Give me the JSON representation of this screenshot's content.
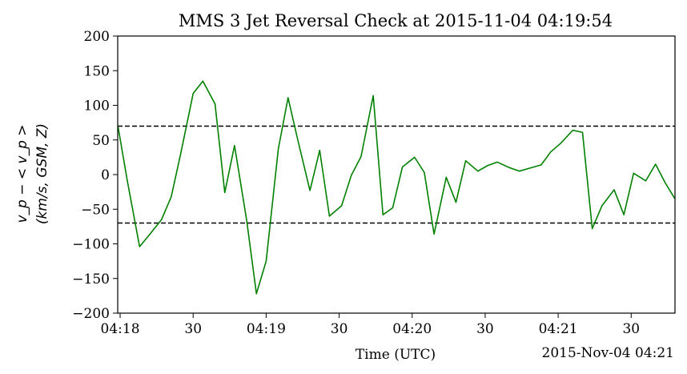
{
  "chart_data": {
    "type": "line",
    "title": "MMS 3 Jet Reversal Check at 2015-11-04 04:19:54",
    "xlabel": "Time (UTC)",
    "ylabel_line1": "v_p − < v_p >",
    "ylabel_line2": "(km/s, GSM, Z)",
    "x_offset_label": "2015-Nov-04 04:21",
    "x_units": "seconds after 04:18:00 UTC",
    "xlim": [
      -1,
      228
    ],
    "ylim": [
      -200,
      200
    ],
    "xticks": [
      {
        "value": 0,
        "label": "04:18"
      },
      {
        "value": 30,
        "label": "30"
      },
      {
        "value": 60,
        "label": "04:19"
      },
      {
        "value": 90,
        "label": "30"
      },
      {
        "value": 120,
        "label": "04:20"
      },
      {
        "value": 150,
        "label": "30"
      },
      {
        "value": 180,
        "label": "04:21"
      },
      {
        "value": 210,
        "label": "30"
      }
    ],
    "yticks": [
      {
        "value": 200,
        "label": "200"
      },
      {
        "value": 150,
        "label": "150"
      },
      {
        "value": 100,
        "label": "100"
      },
      {
        "value": 50,
        "label": "50"
      },
      {
        "value": 0,
        "label": "0"
      },
      {
        "value": -50,
        "label": "−50"
      },
      {
        "value": -100,
        "label": "−100"
      },
      {
        "value": -150,
        "label": "−150"
      },
      {
        "value": -200,
        "label": "−200"
      }
    ],
    "thresholds": [
      70,
      -70
    ],
    "series": [
      {
        "color": "#008000",
        "x": [
          -1,
          3,
          8,
          12,
          17,
          21,
          25,
          30,
          34,
          39,
          43,
          47,
          52,
          56,
          60,
          65,
          69,
          73,
          78,
          82,
          86,
          91,
          95,
          99,
          104,
          108,
          112,
          116,
          121,
          125,
          129,
          134,
          138,
          142,
          147,
          151,
          155,
          160,
          164,
          168,
          173,
          177,
          181,
          186,
          190,
          194,
          198,
          203,
          207,
          211,
          216,
          220,
          224,
          228
        ],
        "y": [
          72,
          -10,
          -104,
          -87,
          -65,
          -32,
          32,
          117,
          135,
          102,
          -26,
          42,
          -66,
          -172,
          -125,
          37,
          111,
          50,
          -23,
          35,
          -60,
          -45,
          -1,
          26,
          114,
          -58,
          -48,
          11,
          25,
          3,
          -86,
          -4,
          -40,
          20,
          5,
          13,
          18,
          10,
          5,
          9,
          14,
          33,
          45,
          64,
          61,
          -78,
          -45,
          -22,
          -58,
          2,
          -9,
          15,
          -12,
          -35
        ]
      }
    ],
    "grid": false,
    "legend": "none"
  }
}
